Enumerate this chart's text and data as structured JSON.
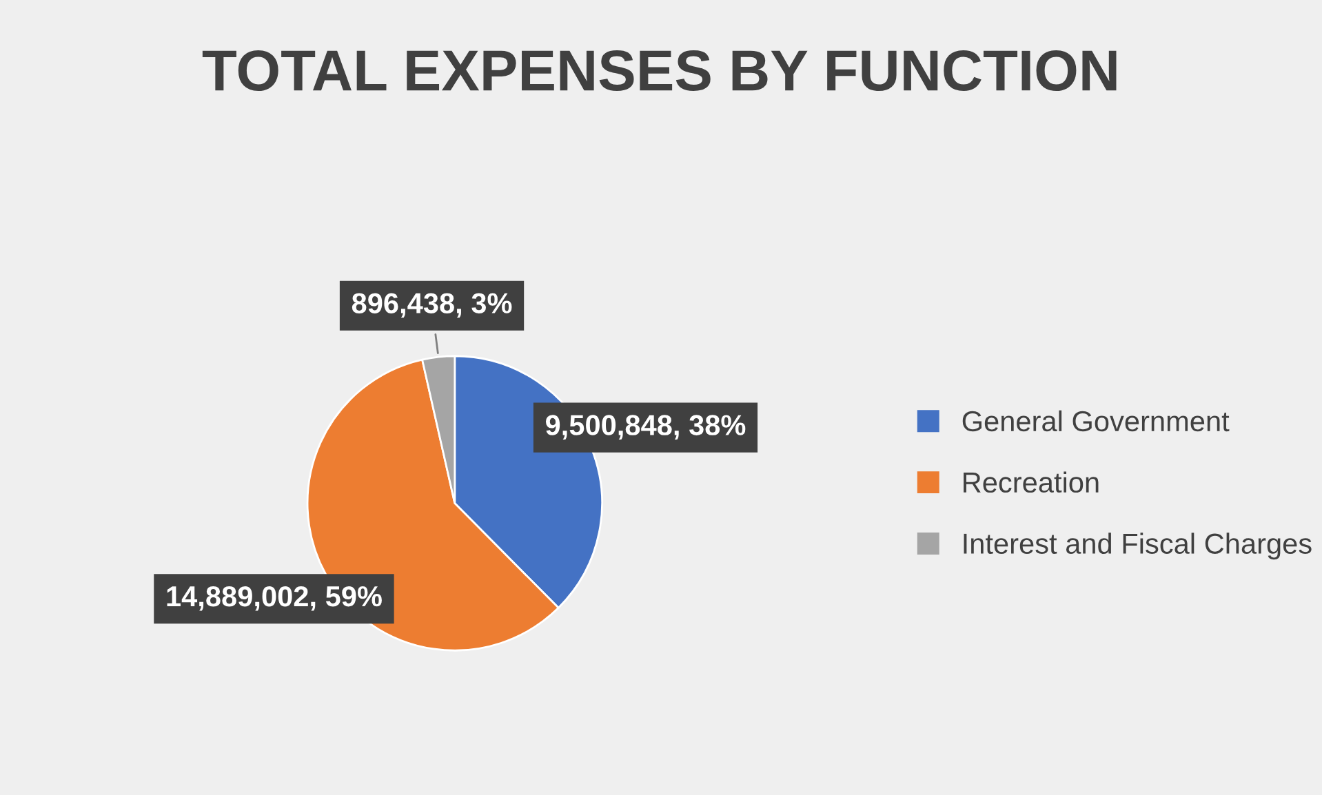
{
  "chart_data": {
    "type": "pie",
    "title": "TOTAL EXPENSES BY FUNCTION",
    "categories": [
      "General Government",
      "Recreation",
      "Interest and Fiscal Charges"
    ],
    "values": [
      9500848,
      14889002,
      896438
    ],
    "colors": [
      "#4472c4",
      "#ed7d31",
      "#a5a5a5"
    ],
    "value_labels": [
      "9,500,848, 38%",
      "14,889,002, 59%",
      "896,438, 3%"
    ],
    "legend": "right"
  }
}
